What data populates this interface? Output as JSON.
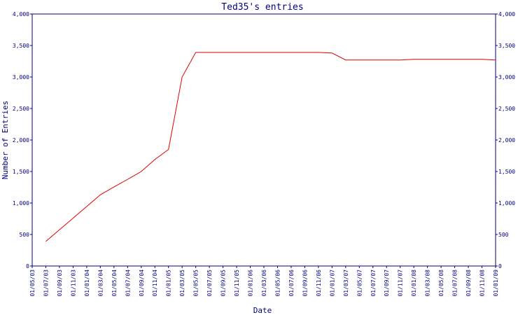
{
  "chart_data": {
    "type": "line",
    "title": "Ted35's entries",
    "x_label": "Date",
    "y_label": "Number of Entries",
    "categories": [
      "01/05/03",
      "01/07/03",
      "01/09/03",
      "01/11/03",
      "01/01/04",
      "01/03/04",
      "01/05/04",
      "01/07/04",
      "01/09/04",
      "01/11/04",
      "01/01/05",
      "01/03/05",
      "01/05/05",
      "01/07/05",
      "01/09/05",
      "01/11/05",
      "01/01/06",
      "01/03/06",
      "01/05/06",
      "01/07/06",
      "01/09/06",
      "01/11/06",
      "01/01/07",
      "01/03/07",
      "01/05/07",
      "01/07/07",
      "01/09/07",
      "01/11/07",
      "01/01/08",
      "01/03/08",
      "01/05/08",
      "01/07/08",
      "01/09/08",
      "01/11/08",
      "01/01/09"
    ],
    "series": [
      {
        "color": "#e00000",
        "values": [
          null,
          390,
          575,
          760,
          945,
          1130,
          1255,
          1375,
          1500,
          1690,
          1850,
          3000,
          3390,
          3390,
          3390,
          3390,
          3390,
          3390,
          3390,
          3390,
          3390,
          3390,
          3380,
          3270,
          3270,
          3270,
          3270,
          3270,
          3280,
          3280,
          3280,
          3280,
          3280,
          3280,
          3270
        ]
      }
    ],
    "ylim": [
      0,
      4000
    ],
    "yticks": [
      0,
      500,
      {
        "value": 1000,
        "label": "1,000"
      },
      {
        "value": 1500,
        "label": "1,500"
      },
      {
        "value": 2000,
        "label": "2,000"
      },
      {
        "value": 2500,
        "label": "2,500"
      },
      {
        "value": 3000,
        "label": "3,000"
      },
      {
        "value": 3500,
        "label": "3,500"
      },
      {
        "value": 4000,
        "label": "4,000"
      }
    ],
    "y2lim": [
      0,
      4000
    ],
    "y2ticks": [
      0,
      500,
      {
        "value": 1000,
        "label": "1,000"
      },
      {
        "value": 1500,
        "label": "1,500"
      },
      {
        "value": 2000,
        "label": "2,000"
      },
      {
        "value": 2500,
        "label": "2,500"
      },
      {
        "value": 3000,
        "label": "3,000"
      },
      {
        "value": 3500,
        "label": "3,500"
      },
      {
        "value": 4000,
        "label": "4,000"
      }
    ],
    "grid": false
  }
}
